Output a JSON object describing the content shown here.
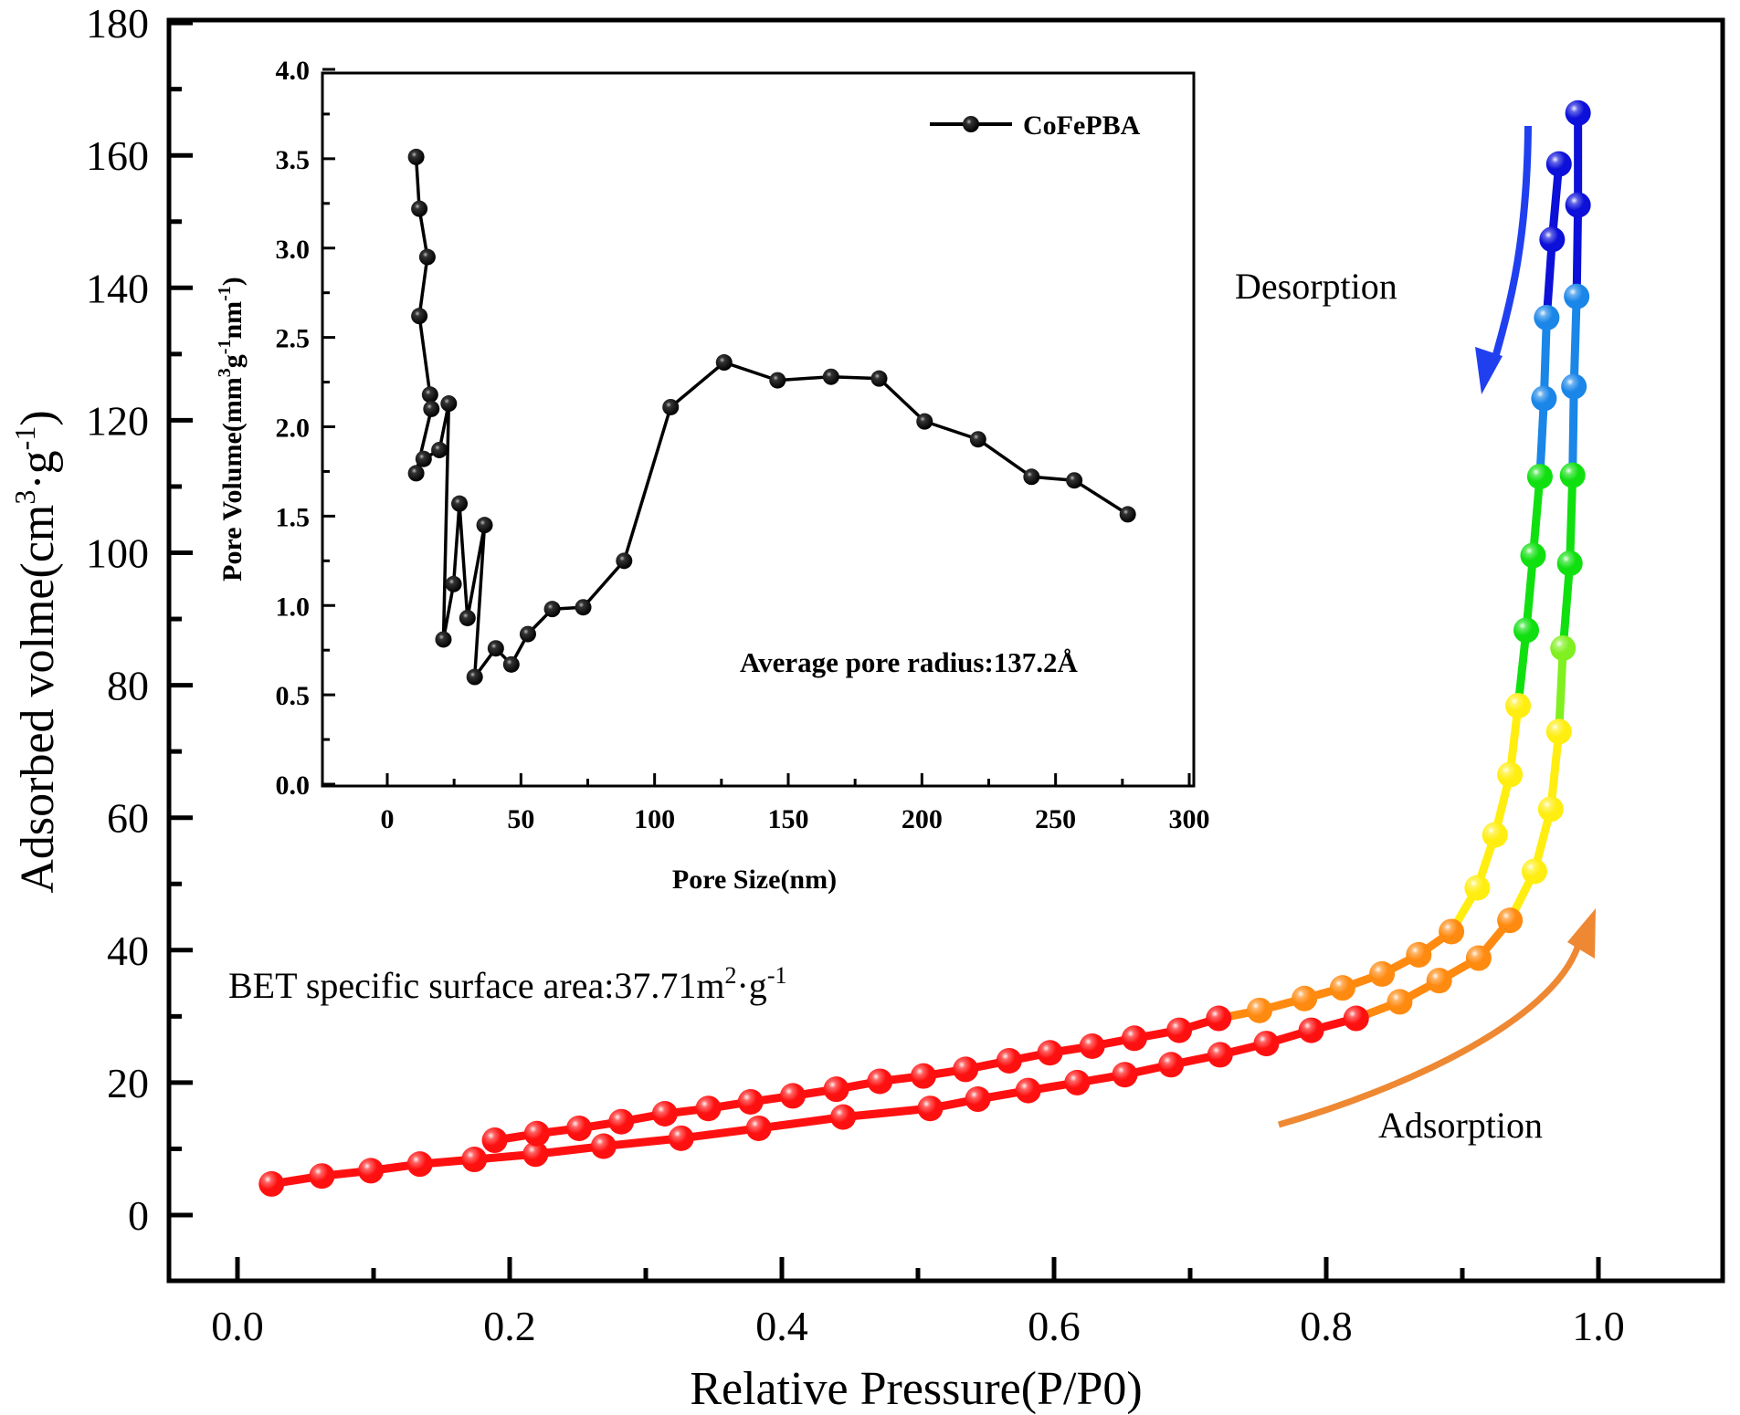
{
  "chart_data": [
    {
      "id": "main",
      "type": "line",
      "title": "",
      "xlabel": "Relative Pressure(P/P0)",
      "ylabel": "Adsorbed volme(cm3·g-1)",
      "ylabel_parts": {
        "base": "Adsorbed volme(cm",
        "sup1": "3",
        "mid": "·g",
        "sup2": "-1",
        "end": ")"
      },
      "xlim": [
        -0.05,
        1.09
      ],
      "ylim": [
        -10,
        180
      ],
      "xticks": [
        0.0,
        0.2,
        0.4,
        0.6,
        0.8,
        1.0
      ],
      "xtick_labels": [
        "0.0",
        "0.2",
        "0.4",
        "0.6",
        "0.8",
        "1.0"
      ],
      "yticks": [
        0,
        20,
        40,
        60,
        80,
        100,
        120,
        140,
        160,
        180
      ],
      "ytick_labels": [
        "0",
        "20",
        "40",
        "60",
        "80",
        "100",
        "120",
        "140",
        "160",
        "180"
      ],
      "grid": false,
      "annotations": {
        "bet": {
          "base": "BET specific surface area:37.71m",
          "sup1": "2",
          "mid": "·g",
          "sup2": "-1"
        },
        "desorption_label": "Desorption",
        "adsorption_label": "Adsorption"
      },
      "colors": {
        "red": "#ff1010",
        "orange": "#ff8a10",
        "yellow": "#ffee10",
        "yellowgreen": "#80f020",
        "green": "#10e010",
        "cyan": "#20e0ff",
        "lightblue": "#1a86e8",
        "darkblue": "#0c10d8",
        "adsorption_arrow": "#ee8833",
        "desorption_arrow": "#2040f0"
      },
      "series": [
        {
          "name": "Adsorption",
          "x": [
            0.025,
            0.062,
            0.098,
            0.134,
            0.174,
            0.219,
            0.269,
            0.326,
            0.383,
            0.445,
            0.509,
            0.544,
            0.581,
            0.617,
            0.652,
            0.686,
            0.722,
            0.756,
            0.789,
            0.822,
            0.854,
            0.883,
            0.912,
            0.935,
            0.953,
            0.965,
            0.971,
            0.974,
            0.979,
            0.981,
            0.982,
            0.984,
            0.985,
            0.985
          ],
          "y": [
            4.7,
            5.9,
            6.7,
            7.7,
            8.4,
            9.2,
            10.4,
            11.6,
            13.1,
            14.8,
            16.1,
            17.5,
            18.8,
            20.0,
            21.2,
            22.7,
            24.2,
            25.9,
            27.9,
            29.7,
            32.2,
            35.4,
            38.8,
            44.5,
            51.9,
            61.3,
            73.0,
            85.6,
            98.4,
            111.7,
            125.1,
            138.7,
            152.5,
            166.4
          ]
        },
        {
          "name": "Desorption",
          "x": [
            0.971,
            0.966,
            0.962,
            0.96,
            0.957,
            0.952,
            0.947,
            0.941,
            0.935,
            0.924,
            0.911,
            0.892,
            0.868,
            0.841,
            0.812,
            0.784,
            0.751,
            0.721,
            0.692,
            0.659,
            0.628,
            0.597,
            0.567,
            0.535,
            0.504,
            0.472,
            0.44,
            0.408,
            0.377,
            0.346,
            0.314,
            0.282,
            0.251,
            0.22,
            0.189
          ],
          "y": [
            158.7,
            147.3,
            135.5,
            123.3,
            111.5,
            99.6,
            88.3,
            76.9,
            66.5,
            57.4,
            49.4,
            42.8,
            39.3,
            36.4,
            34.3,
            32.7,
            30.9,
            29.7,
            27.9,
            26.7,
            25.5,
            24.5,
            23.3,
            22.0,
            21.0,
            20.2,
            19.0,
            18.0,
            17.1,
            16.1,
            15.3,
            14.1,
            13.1,
            12.3,
            11.3
          ]
        }
      ]
    },
    {
      "id": "inset",
      "type": "line",
      "title": "",
      "xlabel": "Pore Size(nm)",
      "ylabel": "Pore Volume(mm3g-1nm-1)",
      "ylabel_parts": {
        "base": "Pore Volume(mm",
        "sup1": "3",
        "mid": "g",
        "sup2": "-1",
        "mid2": "nm",
        "sup3": "-1",
        "end": ")"
      },
      "xlim": [
        -25,
        300
      ],
      "ylim": [
        0.0,
        4.0
      ],
      "xticks": [
        0,
        50,
        100,
        150,
        200,
        250,
        300
      ],
      "xtick_labels": [
        "0",
        "50",
        "100",
        "150",
        "200",
        "250",
        "300"
      ],
      "yticks": [
        0.0,
        0.5,
        1.0,
        1.5,
        2.0,
        2.5,
        3.0,
        3.5,
        4.0
      ],
      "ytick_labels": [
        "0.0",
        "0.5",
        "1.0",
        "1.5",
        "2.0",
        "2.5",
        "3.0",
        "3.5",
        "4.0"
      ],
      "grid": false,
      "legend": {
        "position": "top-right",
        "entries": [
          "CoFePBA"
        ]
      },
      "annotation": "Average pore radius:137.2Å",
      "series": [
        {
          "name": "CoFePBA",
          "x": [
            10.8,
            12.0,
            15.0,
            12.0,
            16.0,
            16.5,
            10.8,
            13.6,
            19.5,
            23.0,
            21.0,
            24.8,
            27.0,
            30.0,
            36.4,
            32.7,
            40.6,
            46.4,
            52.6,
            61.7,
            73.3,
            88.6,
            106.0,
            126.0,
            146.0,
            166.0,
            184.0,
            201.0,
            221.0,
            241.0,
            257.0,
            277.0
          ],
          "y": [
            3.51,
            3.22,
            2.95,
            2.62,
            2.18,
            2.1,
            1.74,
            1.82,
            1.87,
            2.13,
            0.81,
            1.12,
            1.57,
            0.93,
            1.45,
            0.6,
            0.76,
            0.67,
            0.84,
            0.98,
            0.99,
            1.25,
            2.11,
            2.36,
            2.26,
            2.28,
            2.27,
            2.03,
            1.93,
            1.72,
            1.7,
            1.51
          ]
        }
      ]
    }
  ]
}
